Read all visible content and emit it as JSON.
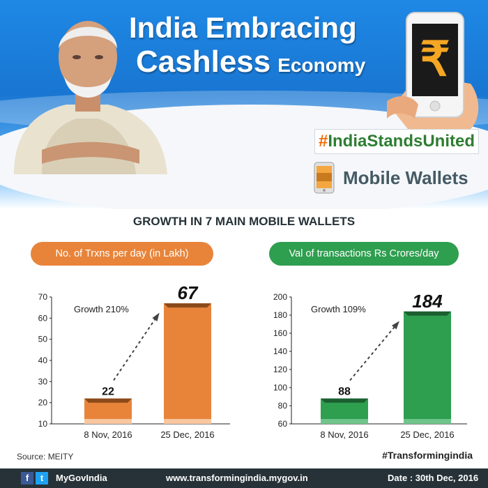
{
  "header": {
    "title_line1": "India Embracing",
    "title_line2_big": "Cashless",
    "title_line2_small": "Economy",
    "hashtag_prefix": "#",
    "hashtag": "IndiaStandsUnited",
    "section_label": "Mobile Wallets",
    "phone_symbol": "₹"
  },
  "heading": "GROWTH IN 7 MAIN MOBILE WALLETS",
  "colors": {
    "orange": "#e8843a",
    "green": "#2e9e4f",
    "banner_blue": "#1976d2"
  },
  "chart_data": [
    {
      "type": "bar",
      "pill_label": "No. of Trxns per day (in Lakh)",
      "categories": [
        "8 Nov, 2016",
        "25 Dec, 2016"
      ],
      "values": [
        22,
        67
      ],
      "data_labels": [
        "22",
        "67"
      ],
      "annotation": "Growth 210%",
      "ylim": [
        10,
        70
      ],
      "yticks": [
        10,
        20,
        30,
        40,
        50,
        60,
        70
      ],
      "color": "#e8843a",
      "color_light": "#f8c7a0",
      "color_dark": "#8a4a1a"
    },
    {
      "type": "bar",
      "pill_label": "Val of transactions Rs Crores/day",
      "categories": [
        "8 Nov, 2016",
        "25 Dec, 2016"
      ],
      "values": [
        88,
        184
      ],
      "data_labels": [
        "88",
        "184"
      ],
      "annotation": "Growth 109%",
      "ylim": [
        60,
        200
      ],
      "yticks": [
        60,
        80,
        100,
        120,
        140,
        160,
        180,
        200
      ],
      "color": "#2e9e4f",
      "color_light": "#6fc58a",
      "color_dark": "#1b5e30"
    }
  ],
  "footer": {
    "source": "Source: MEITY",
    "hashtag": "#Transformingindia",
    "facebook": "f",
    "twitter": "t",
    "handle": "MyGovIndia",
    "url": "www.transformingindia.mygov.in",
    "date": "Date : 30th Dec, 2016"
  }
}
